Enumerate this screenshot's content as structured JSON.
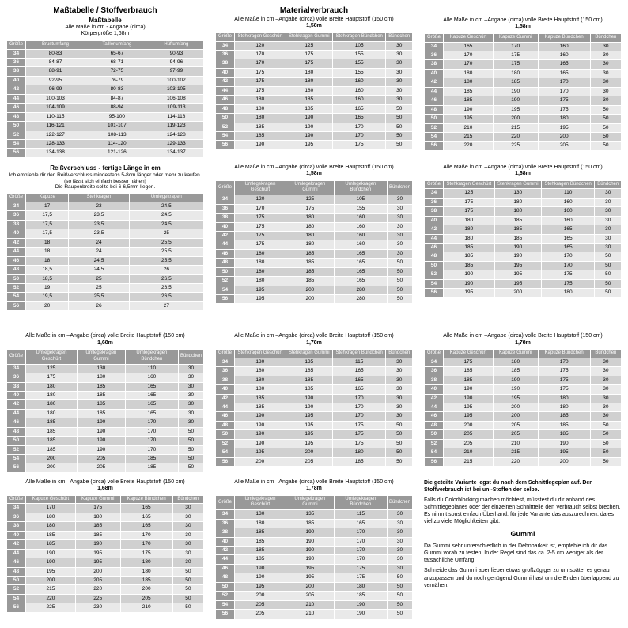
{
  "headings": {
    "mass": "Maßtabelle / Stoffverbrauch",
    "masstabelle": "Maßtabelle",
    "material": "Materialverbrauch",
    "mass_sub1": "Alle Maße in cm - Angabe (circa)",
    "mass_sub2": "Körpergröße 1,68m",
    "material_sub": "Alle Maße in cm –Angabe (circa) volle Breite Hauptstoff (150 cm)",
    "reiss_title": "Reißverschluss - fertige Länge in cm",
    "reiss_note1": "Ich empfehle dir den Reißverschluss mindestens 5-8cm länger oder mehr zu kaufen.",
    "reiss_note2": "(so lässt sich einfach besser nähen)",
    "reiss_note3": "Die Raupenbreite sollte bei 6-6,5mm liegen.",
    "h158": "1,58m",
    "h168": "1,68m",
    "h178": "1,78m",
    "gummi": "Gummi",
    "info1": "Die geteilte Variante legst du nach dem Schnittlegeplan auf. Der Stoffverbrauch ist bei uni-Stoffen der selbe.",
    "info2": "Falls du Colorblocking machen möchtest, müsstest du dir anhand des Schnittlegeplanes oder der einzelnen Schnittteile den Verbrauch selbst brechen. Es nimmt sonst einfach Überhand, für jede Variante das auszurechnen, da es viel zu viele Möglichkeiten gibt.",
    "gummi1": "Da Gummi sehr unterschiedlich in der Dehnbarkeit ist, empfehle ich dir das Gummi vorab zu testen. In der Regel sind das ca. 2-5 cm weniger als der tatsächliche Umfang.",
    "gummi2": "Schneide das Gummi aber lieber etwas großzügiger zu um später es genau anzupassen und du noch genügend Gummi hast um die Enden überlappend zu vernähen."
  },
  "sizes": [
    "34",
    "36",
    "38",
    "40",
    "42",
    "44",
    "46",
    "48",
    "50",
    "52",
    "54",
    "56"
  ],
  "tables": {
    "mass": {
      "headers": [
        "Größe",
        "Brustumfang",
        "Taillenumfang",
        "Hüftumfang"
      ],
      "rows": [
        [
          "34",
          "80-83",
          "65-67",
          "90-93"
        ],
        [
          "36",
          "84-87",
          "68-71",
          "94-96"
        ],
        [
          "38",
          "88-91",
          "72-75",
          "97-99"
        ],
        [
          "40",
          "92-95",
          "76-79",
          "100-102"
        ],
        [
          "42",
          "96-99",
          "80-83",
          "103-105"
        ],
        [
          "44",
          "100-103",
          "84-87",
          "106-108"
        ],
        [
          "46",
          "104-109",
          "88-94",
          "109-113"
        ],
        [
          "48",
          "110-115",
          "95-100",
          "114-118"
        ],
        [
          "50",
          "116-121",
          "101-107",
          "119-123"
        ],
        [
          "52",
          "122-127",
          "108-113",
          "124-128"
        ],
        [
          "54",
          "128-133",
          "114-120",
          "129-133"
        ],
        [
          "56",
          "134-138",
          "121-126",
          "134-137"
        ]
      ]
    },
    "reiss": {
      "headers": [
        "Größe",
        "Kapuze",
        "Stehkragen",
        "Umlegekragen"
      ],
      "rows": [
        [
          "34",
          "17",
          "23",
          "24,5"
        ],
        [
          "36",
          "17,5",
          "23,5",
          "24,5"
        ],
        [
          "38",
          "17,5",
          "23,5",
          "24,5"
        ],
        [
          "40",
          "17,5",
          "23,5",
          "25"
        ],
        [
          "42",
          "18",
          "24",
          "25,5"
        ],
        [
          "44",
          "18",
          "24",
          "25,5"
        ],
        [
          "46",
          "18",
          "24,5",
          "25,5"
        ],
        [
          "48",
          "18,5",
          "24,5",
          "26"
        ],
        [
          "50",
          "18,5",
          "25",
          "26,5"
        ],
        [
          "52",
          "19",
          "25",
          "26,5"
        ],
        [
          "54",
          "19,5",
          "25,5",
          "26,5"
        ],
        [
          "56",
          "20",
          "26",
          "27"
        ]
      ]
    },
    "top1": {
      "headers": [
        "Größe",
        "Stehkragen Geschürt",
        "Stehkragen Gummi",
        "Stehkragen Bündchen",
        "Bündchen"
      ],
      "rows": [
        [
          "34",
          "120",
          "125",
          "105",
          "30"
        ],
        [
          "36",
          "170",
          "175",
          "155",
          "30"
        ],
        [
          "38",
          "170",
          "175",
          "155",
          "30"
        ],
        [
          "40",
          "175",
          "180",
          "155",
          "30"
        ],
        [
          "42",
          "175",
          "180",
          "160",
          "30"
        ],
        [
          "44",
          "175",
          "180",
          "160",
          "30"
        ],
        [
          "46",
          "180",
          "185",
          "160",
          "30"
        ],
        [
          "48",
          "180",
          "185",
          "165",
          "50"
        ],
        [
          "50",
          "180",
          "190",
          "165",
          "50"
        ],
        [
          "52",
          "185",
          "190",
          "170",
          "50"
        ],
        [
          "54",
          "185",
          "190",
          "170",
          "50"
        ],
        [
          "56",
          "190",
          "195",
          "175",
          "50"
        ]
      ]
    },
    "top2": {
      "headers": [
        "Größe",
        "Kapuze Geschürt",
        "Kapuze Gummi",
        "Kapuze Bündchen",
        "Bündchen"
      ],
      "rows": [
        [
          "34",
          "165",
          "170",
          "160",
          "30"
        ],
        [
          "36",
          "170",
          "175",
          "160",
          "30"
        ],
        [
          "38",
          "170",
          "175",
          "165",
          "30"
        ],
        [
          "40",
          "180",
          "180",
          "165",
          "30"
        ],
        [
          "42",
          "180",
          "185",
          "170",
          "30"
        ],
        [
          "44",
          "185",
          "190",
          "170",
          "30"
        ],
        [
          "46",
          "185",
          "190",
          "175",
          "30"
        ],
        [
          "48",
          "190",
          "195",
          "175",
          "50"
        ],
        [
          "50",
          "195",
          "200",
          "180",
          "50"
        ],
        [
          "52",
          "210",
          "215",
          "195",
          "50"
        ],
        [
          "54",
          "215",
          "220",
          "200",
          "50"
        ],
        [
          "56",
          "220",
          "225",
          "205",
          "50"
        ]
      ]
    },
    "mid1": {
      "headers": [
        "Größe",
        "Umlegekragen Geschürt",
        "Umlegekragen Gummi",
        "Umlegekragen Bündchen",
        "Bündchen"
      ],
      "rows": [
        [
          "34",
          "120",
          "125",
          "105",
          "30"
        ],
        [
          "36",
          "170",
          "175",
          "155",
          "30"
        ],
        [
          "38",
          "175",
          "180",
          "160",
          "30"
        ],
        [
          "40",
          "175",
          "180",
          "160",
          "30"
        ],
        [
          "42",
          "175",
          "180",
          "160",
          "30"
        ],
        [
          "44",
          "175",
          "180",
          "160",
          "30"
        ],
        [
          "46",
          "180",
          "185",
          "165",
          "30"
        ],
        [
          "48",
          "180",
          "185",
          "165",
          "50"
        ],
        [
          "50",
          "180",
          "185",
          "165",
          "50"
        ],
        [
          "52",
          "180",
          "185",
          "165",
          "50"
        ],
        [
          "54",
          "195",
          "200",
          "280",
          "50"
        ],
        [
          "56",
          "195",
          "200",
          "280",
          "50"
        ]
      ]
    },
    "mid2": {
      "headers": [
        "Größe",
        "Stehkragen Geschürt",
        "Stehkragen Gummi",
        "Stehkragen Bündchen",
        "Bündchen"
      ],
      "rows": [
        [
          "34",
          "125",
          "130",
          "110",
          "30"
        ],
        [
          "36",
          "175",
          "180",
          "160",
          "30"
        ],
        [
          "38",
          "175",
          "180",
          "160",
          "30"
        ],
        [
          "40",
          "180",
          "185",
          "160",
          "30"
        ],
        [
          "42",
          "180",
          "185",
          "165",
          "30"
        ],
        [
          "44",
          "180",
          "185",
          "165",
          "30"
        ],
        [
          "46",
          "185",
          "190",
          "165",
          "30"
        ],
        [
          "48",
          "185",
          "190",
          "170",
          "50"
        ],
        [
          "50",
          "185",
          "195",
          "170",
          "50"
        ],
        [
          "54",
          "190",
          "195",
          "175",
          "50"
        ],
        [
          "56",
          "195",
          "200",
          "180",
          "50"
        ]
      ],
      "extraRow": [
        "52",
        "190",
        "195",
        "175",
        "50"
      ]
    },
    "r3c1": {
      "headers": [
        "Größe",
        "Umlegekragen Geschürt",
        "Umlegekragen Gummi",
        "Umlegekragen Bündchen",
        "Bündchen"
      ],
      "rows": [
        [
          "34",
          "125",
          "130",
          "110",
          "30"
        ],
        [
          "36",
          "175",
          "180",
          "160",
          "30"
        ],
        [
          "38",
          "180",
          "185",
          "165",
          "30"
        ],
        [
          "40",
          "180",
          "185",
          "165",
          "30"
        ],
        [
          "42",
          "180",
          "185",
          "165",
          "30"
        ],
        [
          "44",
          "180",
          "185",
          "165",
          "30"
        ],
        [
          "46",
          "185",
          "190",
          "170",
          "30"
        ],
        [
          "48",
          "185",
          "190",
          "170",
          "50"
        ],
        [
          "50",
          "185",
          "190",
          "170",
          "50"
        ],
        [
          "52",
          "185",
          "190",
          "170",
          "50"
        ],
        [
          "54",
          "200",
          "205",
          "185",
          "50"
        ],
        [
          "56",
          "200",
          "205",
          "185",
          "50"
        ]
      ]
    },
    "r3c2": {
      "headers": [
        "Größe",
        "Stehkragen Geschürt",
        "Stehkragen Gummi",
        "Stehkragen Bündchen",
        "Bündchen"
      ],
      "rows": [
        [
          "34",
          "130",
          "135",
          "115",
          "30"
        ],
        [
          "36",
          "180",
          "185",
          "165",
          "30"
        ],
        [
          "38",
          "180",
          "185",
          "165",
          "30"
        ],
        [
          "40",
          "180",
          "185",
          "165",
          "30"
        ],
        [
          "42",
          "185",
          "190",
          "170",
          "30"
        ],
        [
          "44",
          "185",
          "190",
          "170",
          "30"
        ],
        [
          "46",
          "190",
          "195",
          "170",
          "30"
        ],
        [
          "48",
          "190",
          "195",
          "175",
          "50"
        ],
        [
          "50",
          "190",
          "195",
          "175",
          "50"
        ],
        [
          "52",
          "190",
          "195",
          "175",
          "50"
        ],
        [
          "54",
          "195",
          "200",
          "180",
          "50"
        ],
        [
          "56",
          "200",
          "205",
          "185",
          "50"
        ]
      ]
    },
    "r3c3": {
      "headers": [
        "Größe",
        "Kapuze Geschürt",
        "Kapuze Gummi",
        "Kapuze Bündchen",
        "Bündchen"
      ],
      "rows": [
        [
          "34",
          "175",
          "180",
          "170",
          "30"
        ],
        [
          "36",
          "185",
          "185",
          "175",
          "30"
        ],
        [
          "38",
          "185",
          "190",
          "175",
          "30"
        ],
        [
          "40",
          "190",
          "190",
          "175",
          "30"
        ],
        [
          "42",
          "190",
          "195",
          "180",
          "30"
        ],
        [
          "44",
          "195",
          "200",
          "180",
          "30"
        ],
        [
          "46",
          "195",
          "200",
          "185",
          "30"
        ],
        [
          "48",
          "200",
          "205",
          "185",
          "50"
        ],
        [
          "50",
          "205",
          "205",
          "185",
          "50"
        ],
        [
          "52",
          "205",
          "210",
          "190",
          "50"
        ],
        [
          "54",
          "210",
          "215",
          "195",
          "50"
        ],
        [
          "56",
          "215",
          "220",
          "200",
          "50"
        ]
      ]
    },
    "r4c1": {
      "headers": [
        "Größe",
        "Kapuze Geschürt",
        "Kapuze Gummi",
        "Kapuze Bündchen",
        "Bündchen"
      ],
      "rows": [
        [
          "34",
          "170",
          "175",
          "165",
          "30"
        ],
        [
          "36",
          "180",
          "180",
          "165",
          "30"
        ],
        [
          "38",
          "180",
          "185",
          "165",
          "30"
        ],
        [
          "40",
          "185",
          "185",
          "170",
          "30"
        ],
        [
          "42",
          "185",
          "190",
          "170",
          "30"
        ],
        [
          "44",
          "190",
          "195",
          "175",
          "30"
        ],
        [
          "46",
          "190",
          "195",
          "180",
          "30"
        ],
        [
          "48",
          "195",
          "200",
          "180",
          "50"
        ],
        [
          "50",
          "200",
          "205",
          "185",
          "50"
        ],
        [
          "52",
          "215",
          "220",
          "200",
          "50"
        ],
        [
          "54",
          "220",
          "225",
          "205",
          "50"
        ],
        [
          "56",
          "225",
          "230",
          "210",
          "50"
        ]
      ]
    },
    "r4c2": {
      "headers": [
        "Größe",
        "Umlegekragen Geschürt",
        "Umlegekragen Gummi",
        "Umlegekragen Bündchen",
        "Bündchen"
      ],
      "rows": [
        [
          "34",
          "130",
          "135",
          "115",
          "30"
        ],
        [
          "36",
          "180",
          "185",
          "165",
          "30"
        ],
        [
          "38",
          "185",
          "190",
          "170",
          "30"
        ],
        [
          "40",
          "185",
          "190",
          "170",
          "30"
        ],
        [
          "42",
          "185",
          "190",
          "170",
          "30"
        ],
        [
          "44",
          "185",
          "190",
          "170",
          "30"
        ],
        [
          "46",
          "190",
          "195",
          "175",
          "30"
        ],
        [
          "48",
          "190",
          "195",
          "175",
          "50"
        ],
        [
          "50",
          "195",
          "200",
          "180",
          "50"
        ],
        [
          "52",
          "200",
          "205",
          "185",
          "50"
        ],
        [
          "54",
          "205",
          "210",
          "190",
          "50"
        ],
        [
          "56",
          "205",
          "210",
          "190",
          "50"
        ]
      ]
    }
  }
}
